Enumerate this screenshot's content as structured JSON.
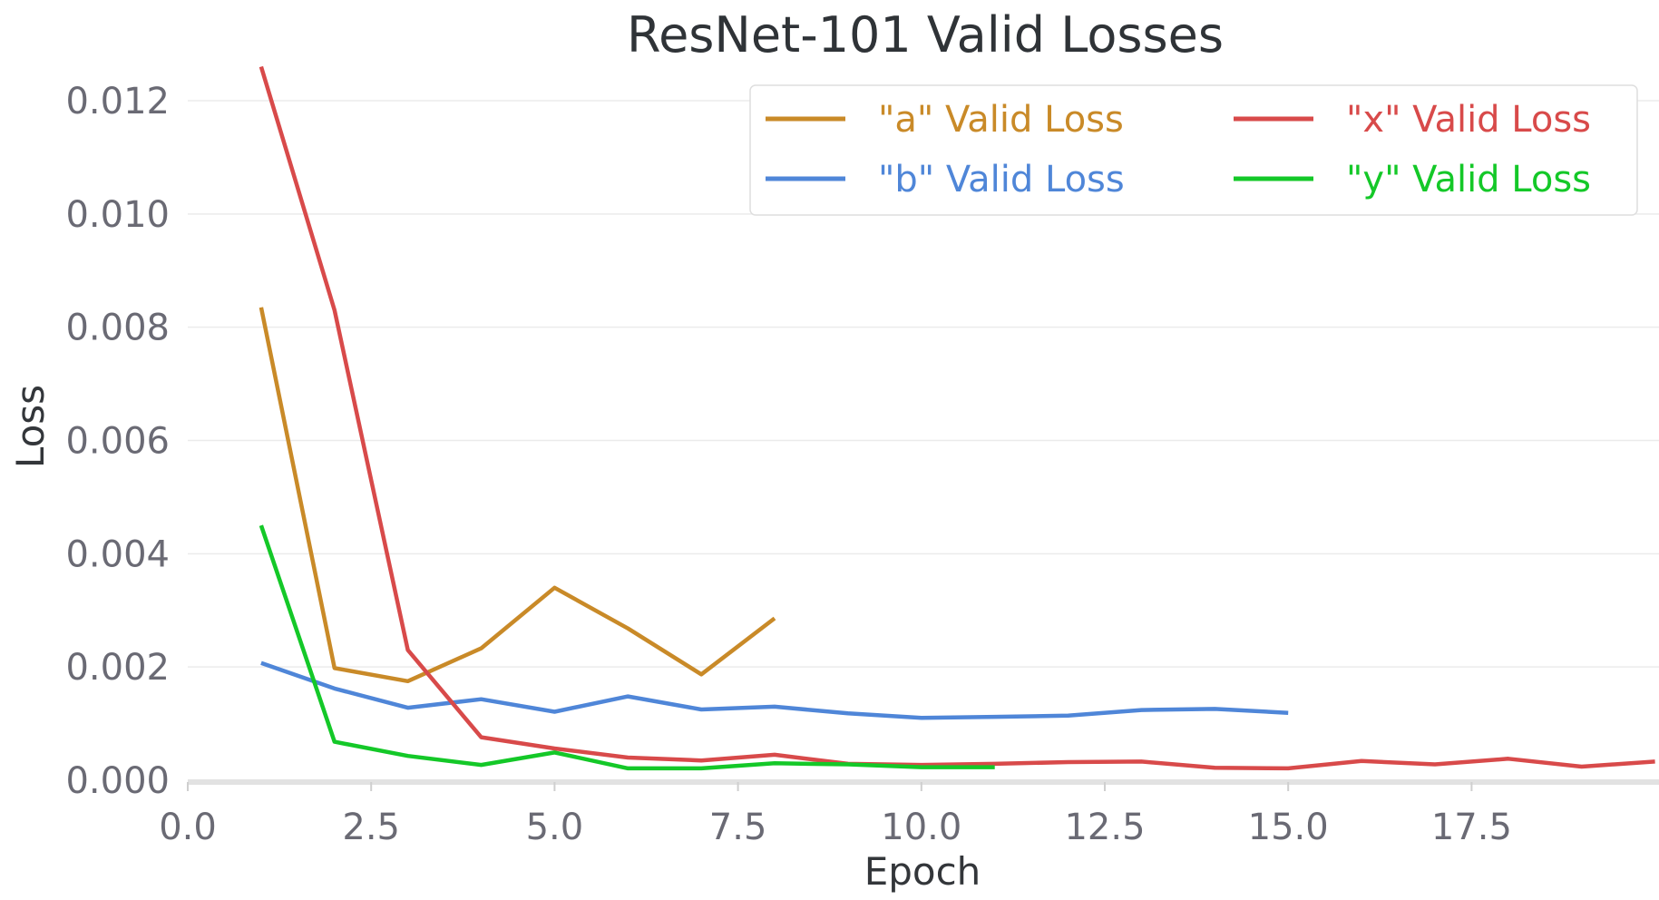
{
  "chart_data": {
    "type": "line",
    "title": "ResNet-101 Valid Losses",
    "xlabel": "Epoch",
    "ylabel": "Loss",
    "xlim": [
      0,
      20
    ],
    "ylim": [
      0,
      0.0128
    ],
    "x_ticks": [
      "0.0",
      "2.5",
      "5.0",
      "7.5",
      "10.0",
      "12.5",
      "15.0",
      "17.5"
    ],
    "y_ticks": [
      "0.000",
      "0.002",
      "0.004",
      "0.006",
      "0.008",
      "0.010",
      "0.012"
    ],
    "grid": true,
    "legend_position": "top-right",
    "series": [
      {
        "name": "\"a\" Valid Loss",
        "color": "#c98a28",
        "x": [
          1,
          2,
          3,
          4,
          5,
          6,
          7,
          8
        ],
        "values": [
          0.00835,
          0.00198,
          0.00175,
          0.00233,
          0.0034,
          0.00268,
          0.00187,
          0.00286
        ]
      },
      {
        "name": "\"b\" Valid Loss",
        "color": "#4f86d8",
        "x": [
          1,
          2,
          3,
          4,
          5,
          6,
          7,
          8,
          9,
          10,
          11,
          12,
          13,
          14,
          15
        ],
        "values": [
          0.00207,
          0.00162,
          0.00128,
          0.00143,
          0.00121,
          0.00148,
          0.00125,
          0.0013,
          0.00118,
          0.0011,
          0.00112,
          0.00114,
          0.00124,
          0.00126,
          0.00119
        ]
      },
      {
        "name": "\"x\" Valid Loss",
        "color": "#d84a4a",
        "x": [
          1,
          2,
          3,
          4,
          5,
          6,
          7,
          8,
          9,
          10,
          11,
          12,
          13,
          14,
          15,
          16,
          17,
          18,
          19,
          20
        ],
        "values": [
          0.0126,
          0.0083,
          0.0023,
          0.00076,
          0.00056,
          0.0004,
          0.00035,
          0.00045,
          0.00029,
          0.00027,
          0.00029,
          0.00032,
          0.00033,
          0.00022,
          0.00021,
          0.00034,
          0.00028,
          0.00038,
          0.00024,
          0.00033
        ]
      },
      {
        "name": "\"y\" Valid Loss",
        "color": "#14c828",
        "x": [
          1,
          2,
          3,
          4,
          5,
          6,
          7,
          8,
          9,
          10,
          11
        ],
        "values": [
          0.0045,
          0.00068,
          0.00043,
          0.00027,
          0.00049,
          0.00021,
          0.00021,
          0.0003,
          0.00028,
          0.00023,
          0.00023
        ]
      }
    ]
  }
}
